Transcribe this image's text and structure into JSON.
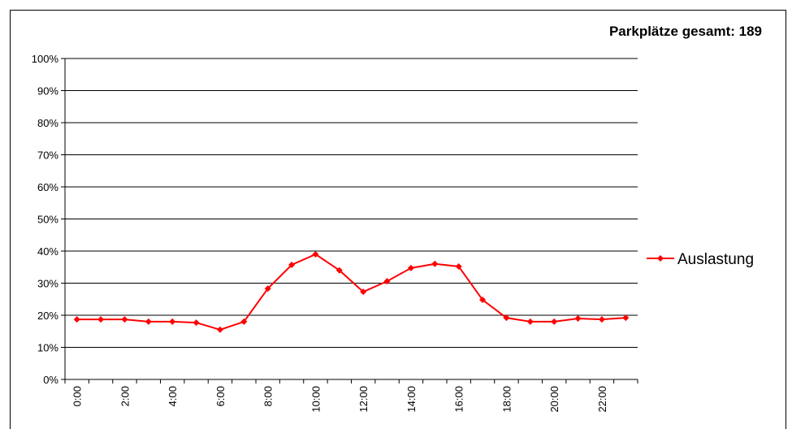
{
  "chart_data": {
    "type": "line",
    "title": "Parkplätze gesamt: 189",
    "categories": [
      "0:00",
      null,
      "2:00",
      null,
      "4:00",
      null,
      "6:00",
      null,
      "8:00",
      null,
      "10:00",
      null,
      "12:00",
      null,
      "14:00",
      null,
      "16:00",
      null,
      "18:00",
      null,
      "20:00",
      null,
      "22:00",
      null
    ],
    "series": [
      {
        "name": "Auslastung",
        "color": "#ff0000",
        "values": [
          18.7,
          18.7,
          18.7,
          18,
          18,
          17.7,
          15.5,
          18,
          28.3,
          35.7,
          39,
          34,
          27.3,
          30.6,
          34.7,
          36,
          35.2,
          24.8,
          19.2,
          18,
          18,
          19,
          18.7,
          19.2
        ]
      }
    ],
    "ylim": [
      0,
      100
    ],
    "yticks": [
      {
        "value": 0,
        "label": "0%"
      },
      {
        "value": 10,
        "label": "10%"
      },
      {
        "value": 20,
        "label": "20%"
      },
      {
        "value": 30,
        "label": "30%"
      },
      {
        "value": 40,
        "label": "40%"
      },
      {
        "value": 50,
        "label": "50%"
      },
      {
        "value": 60,
        "label": "60%"
      },
      {
        "value": 70,
        "label": "70%"
      },
      {
        "value": 80,
        "label": "80%"
      },
      {
        "value": 90,
        "label": "90%"
      },
      {
        "value": 100,
        "label": "100%"
      }
    ],
    "grid": true,
    "legend": "right"
  }
}
